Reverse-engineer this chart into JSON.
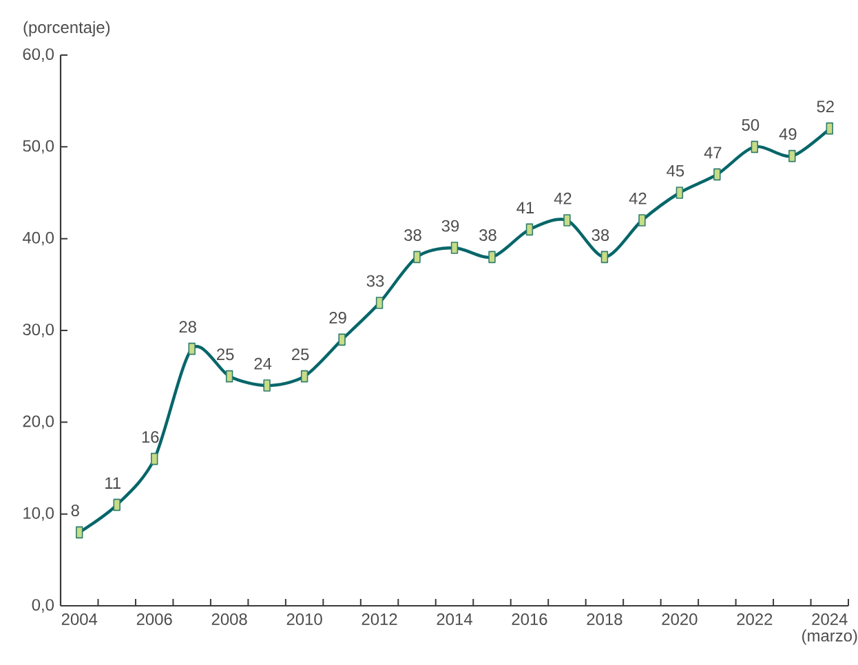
{
  "chart_data": {
    "type": "line",
    "ylabel": "(porcentaje)",
    "categories": [
      "2004",
      null,
      "2006",
      null,
      "2008",
      null,
      "2010",
      null,
      "2012",
      null,
      "2014",
      null,
      "2016",
      null,
      "2018",
      null,
      "2020",
      null,
      "2022",
      null,
      "2024 (marzo)"
    ],
    "series": [
      {
        "color": "#07666a",
        "values": [
          8,
          11,
          16,
          28,
          25,
          24,
          25,
          29,
          33,
          38,
          39,
          38,
          41,
          42,
          38,
          42,
          45,
          47,
          50,
          49,
          52
        ]
      }
    ],
    "ylim": [
      0,
      60
    ],
    "yticks": [
      {
        "value": 0,
        "label": "0,0"
      },
      {
        "value": 10,
        "label": "10,0"
      },
      {
        "value": 20,
        "label": "20,0"
      },
      {
        "value": 30,
        "label": "30,0"
      },
      {
        "value": 40,
        "label": "40,0"
      },
      {
        "value": 50,
        "label": "50,0"
      },
      {
        "value": 60,
        "label": "60,0"
      }
    ],
    "data_labels": true,
    "marker": "square",
    "line_style": "solid"
  }
}
